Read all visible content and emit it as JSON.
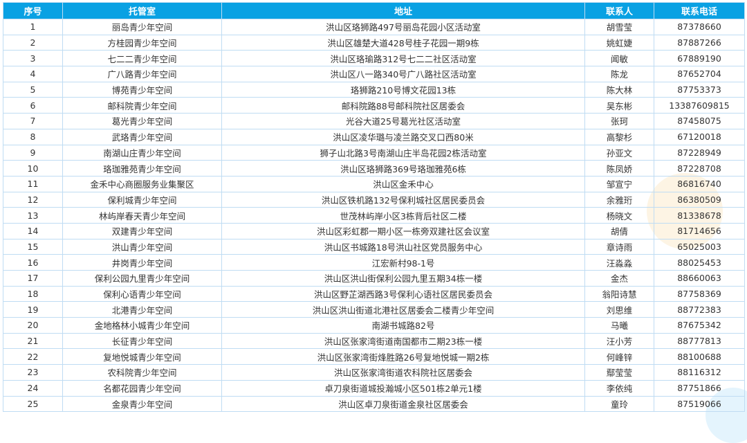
{
  "table": {
    "headers": [
      "序号",
      "托管室",
      "地址",
      "联系人",
      "联系电话"
    ],
    "rows": [
      [
        "1",
        "丽岛青少年空间",
        "洪山区珞狮路497号丽岛花园小区活动室",
        "胡雪莹",
        "87378660"
      ],
      [
        "2",
        "方桂园青少年空间",
        "洪山区雄楚大道428号桂子花园一期9栋",
        "姚虹婕",
        "87887266"
      ],
      [
        "3",
        "七二二青少年空间",
        "洪山区珞瑜路312号七二二社区活动室",
        "闻敏",
        "67889190"
      ],
      [
        "4",
        "广八路青少年空间",
        "洪山区八一路340号广八路社区活动室",
        "陈龙",
        "87652704"
      ],
      [
        "5",
        "博苑青少年空间",
        "珞狮路210号博文花园13栋",
        "陈大林",
        "87753373"
      ],
      [
        "6",
        "邮科院青少年空间",
        "邮科院路88号邮科院社区居委会",
        "吴东彬",
        "13387609815"
      ],
      [
        "7",
        "葛光青少年空间",
        "光谷大道25号葛光社区活动室",
        "张珂",
        "87458075"
      ],
      [
        "8",
        "武珞青少年空间",
        "洪山区凌华璐与凌兰路交叉口西80米",
        "高黎杉",
        "67120018"
      ],
      [
        "9",
        "南湖山庄青少年空间",
        "狮子山北路3号南湖山庄半岛花园2栋活动室",
        "孙亚文",
        "87228949"
      ],
      [
        "10",
        "珞珈雅苑青少年空间",
        "洪山区珞狮路369号珞珈雅苑6栋",
        "陈凤娇",
        "87228708"
      ],
      [
        "11",
        "金禾中心商圈服务业集聚区",
        "洪山区金禾中心",
        "邹宣宁",
        "86816740"
      ],
      [
        "12",
        "保利城青少年空间",
        "洪山区铁机路132号保利城社区居民委员会",
        "余雅珩",
        "86380509"
      ],
      [
        "13",
        "林屿岸春天青少年空间",
        "世茂林屿岸小区3栋背后社区二楼",
        "杨晓文",
        "81338678"
      ],
      [
        "14",
        "双建青少年空间",
        "洪山区彩虹郡一期小区一栋旁双建社区会议室",
        "胡倩",
        "81714656"
      ],
      [
        "15",
        "洪山青少年空间",
        "洪山区书城路18号洪山社区党员服务中心",
        "章诗雨",
        "65025003"
      ],
      [
        "16",
        "井岗青少年空间",
        "江宏新村98-1号",
        "汪淼淼",
        "88025453"
      ],
      [
        "17",
        "保利公园九里青少年空间",
        "洪山区洪山街保利公园九里五期34栋一楼",
        "金杰",
        "88660063"
      ],
      [
        "18",
        "保利心语青少年空间",
        "洪山区野芷湖西路3号保利心语社区居民委员会",
        "翁阳诗慧",
        "87758369"
      ],
      [
        "19",
        "北港青少年空间",
        "洪山区洪山街道北港社区居委会二楼青少年空间",
        "刘思维",
        "88772383"
      ],
      [
        "20",
        "金地格林小城青少年空间",
        "南湖书城路82号",
        "马曦",
        "87675342"
      ],
      [
        "21",
        "长征青少年空间",
        "洪山区张家湾街道南国都市二期23栋一楼",
        "汪小芳",
        "88777813"
      ],
      [
        "22",
        "复地悦城青少年空间",
        "洪山区张家湾街烽胜路26号复地悦城一期2栋",
        "何峰锌",
        "88100688"
      ],
      [
        "23",
        "农科院青少年空间",
        "洪山区张家湾街道农科院社区居委会",
        "鄢莹莹",
        "88116312"
      ],
      [
        "24",
        "名都花园青少年空间",
        "卓刀泉街道城投瀚城小区501栋2单元1楼",
        "李依纯",
        "87751866"
      ],
      [
        "25",
        "金泉青少年空间",
        "洪山区卓刀泉街道金泉社区居委会",
        "童玲",
        "87519066"
      ]
    ]
  },
  "colors": {
    "header_bg": "#09a1e3",
    "border": "#bfdcf3"
  }
}
